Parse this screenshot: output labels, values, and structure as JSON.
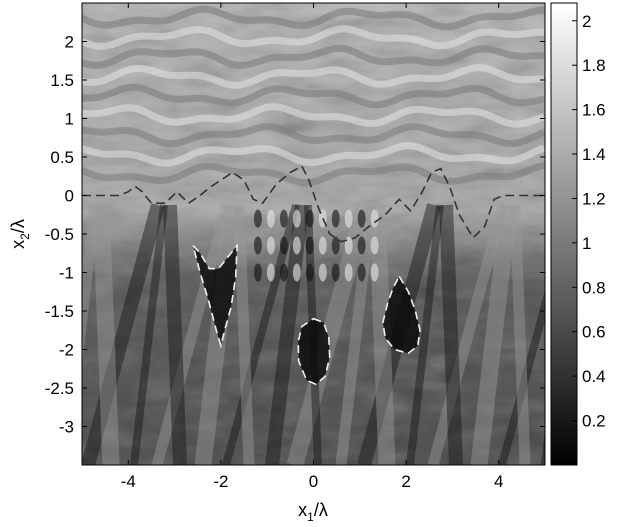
{
  "chart_data": {
    "type": "heatmap",
    "xlabel": {
      "base": "x",
      "sub": "1",
      "suffix": "/λ"
    },
    "ylabel": {
      "base": "x",
      "sub": "2",
      "suffix": "/λ"
    },
    "xlim": [
      -5,
      5
    ],
    "ylim": [
      -3.5,
      2.5
    ],
    "x_ticks": [
      -4,
      -2,
      0,
      2,
      4
    ],
    "y_ticks": [
      2,
      1.5,
      1,
      0.5,
      0,
      -0.5,
      -1,
      -1.5,
      -2,
      -2.5,
      -3
    ],
    "x_tick_labels": [
      "-4",
      "-2",
      "0",
      "2",
      "4"
    ],
    "y_tick_labels": [
      "2",
      "1.5",
      "1",
      "0.5",
      "0",
      "-0.5",
      "-1",
      "-1.5",
      "-2",
      "-2.5",
      "-3"
    ],
    "colorbar": {
      "colormap": "gray",
      "range": [
        0,
        2.08
      ],
      "ticks": [
        2,
        1.8,
        1.6,
        1.4,
        1.2,
        1,
        0.8,
        0.6,
        0.4,
        0.2
      ],
      "tick_labels": [
        "2",
        "1.8",
        "1.6",
        "1.4",
        "1.2",
        "1",
        "0.8",
        "0.6",
        "0.4",
        "0.2"
      ]
    },
    "interface_curve": {
      "style": "dashed",
      "color": "#333333",
      "points": [
        [
          -5,
          0
        ],
        [
          -4.2,
          0
        ],
        [
          -4.0,
          0.05
        ],
        [
          -3.85,
          0.12
        ],
        [
          -3.7,
          0.05
        ],
        [
          -3.5,
          -0.1
        ],
        [
          -3.2,
          -0.1
        ],
        [
          -2.95,
          0.05
        ],
        [
          -2.7,
          -0.1
        ],
        [
          -2.45,
          0.0
        ],
        [
          -2.25,
          0.1
        ],
        [
          -2.0,
          0.2
        ],
        [
          -1.75,
          0.3
        ],
        [
          -1.5,
          0.2
        ],
        [
          -1.3,
          -0.05
        ],
        [
          -1.1,
          -0.1
        ],
        [
          -0.8,
          0.15
        ],
        [
          -0.5,
          0.3
        ],
        [
          -0.25,
          0.38
        ],
        [
          -0.1,
          0.2
        ],
        [
          0.1,
          -0.15
        ],
        [
          0.35,
          -0.5
        ],
        [
          0.6,
          -0.6
        ],
        [
          0.9,
          -0.55
        ],
        [
          1.2,
          -0.4
        ],
        [
          1.55,
          -0.25
        ],
        [
          1.85,
          -0.05
        ],
        [
          2.1,
          -0.2
        ],
        [
          2.35,
          0.05
        ],
        [
          2.55,
          0.3
        ],
        [
          2.75,
          0.35
        ],
        [
          2.95,
          0.1
        ],
        [
          3.15,
          -0.25
        ],
        [
          3.45,
          -0.55
        ],
        [
          3.7,
          -0.4
        ],
        [
          3.9,
          -0.05
        ],
        [
          4.1,
          0.0
        ],
        [
          5,
          0.0
        ]
      ]
    },
    "scatterers": [
      {
        "shape": "inverted-teardrop",
        "color": "#f0f0f0",
        "points": [
          [
            -2.6,
            -0.65
          ],
          [
            -2.45,
            -0.75
          ],
          [
            -2.25,
            -0.95
          ],
          [
            -2.05,
            -0.95
          ],
          [
            -1.85,
            -0.8
          ],
          [
            -1.65,
            -0.65
          ],
          [
            -1.68,
            -1.05
          ],
          [
            -1.78,
            -1.45
          ],
          [
            -1.92,
            -1.75
          ],
          [
            -2.0,
            -1.95
          ],
          [
            -2.1,
            -1.75
          ],
          [
            -2.25,
            -1.4
          ],
          [
            -2.45,
            -1.0
          ],
          [
            -2.6,
            -0.65
          ]
        ]
      },
      {
        "shape": "ellipse",
        "color": "#f0f0f0",
        "points": [
          [
            0.0,
            -1.6
          ],
          [
            0.22,
            -1.65
          ],
          [
            0.33,
            -1.85
          ],
          [
            0.35,
            -2.1
          ],
          [
            0.25,
            -2.35
          ],
          [
            0.05,
            -2.45
          ],
          [
            -0.15,
            -2.4
          ],
          [
            -0.32,
            -2.15
          ],
          [
            -0.33,
            -1.9
          ],
          [
            -0.25,
            -1.7
          ],
          [
            0.0,
            -1.6
          ]
        ]
      },
      {
        "shape": "teardrop",
        "color": "#f0f0f0",
        "points": [
          [
            1.85,
            -1.05
          ],
          [
            2.05,
            -1.25
          ],
          [
            2.2,
            -1.5
          ],
          [
            2.3,
            -1.75
          ],
          [
            2.25,
            -1.95
          ],
          [
            2.05,
            -2.05
          ],
          [
            1.75,
            -2.0
          ],
          [
            1.55,
            -1.85
          ],
          [
            1.5,
            -1.65
          ],
          [
            1.6,
            -1.4
          ],
          [
            1.72,
            -1.2
          ],
          [
            1.85,
            -1.05
          ]
        ]
      }
    ]
  }
}
